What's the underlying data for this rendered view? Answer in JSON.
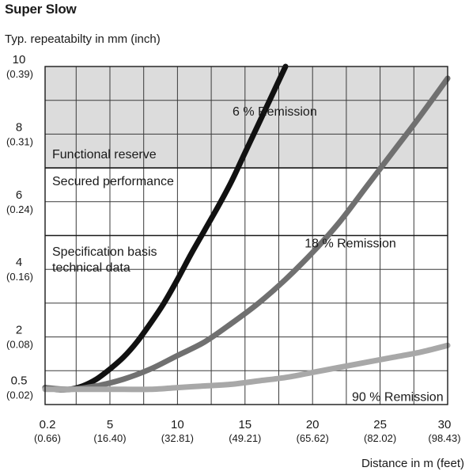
{
  "chart_data": {
    "type": "line",
    "title": "Super Slow",
    "ylabel": "Typ. repeatabilty in mm (inch)",
    "xlabel": "Distance in m (feet)",
    "xlim": [
      0.2,
      30
    ],
    "ylim": [
      0,
      10
    ],
    "grid": true,
    "x_ticks": [
      {
        "value": 0.2,
        "label": "0.2",
        "sub": "(0.66)"
      },
      {
        "value": 5,
        "label": "5",
        "sub": "(16.40)"
      },
      {
        "value": 10,
        "label": "10",
        "sub": "(32.81)"
      },
      {
        "value": 15,
        "label": "15",
        "sub": "(49.21)"
      },
      {
        "value": 20,
        "label": "20",
        "sub": "(65.62)"
      },
      {
        "value": 25,
        "label": "25",
        "sub": "(82.02)"
      },
      {
        "value": 30,
        "label": "30",
        "sub": "(98.43)"
      }
    ],
    "y_ticks": [
      {
        "value": 10,
        "label": "10",
        "sub": "(0.39)"
      },
      {
        "value": 8,
        "label": "8",
        "sub": "(0.31)"
      },
      {
        "value": 6,
        "label": "6",
        "sub": "(0.24)"
      },
      {
        "value": 4,
        "label": "4",
        "sub": "(0.16)"
      },
      {
        "value": 2,
        "label": "2",
        "sub": "(0.08)"
      },
      {
        "value": 0.5,
        "label": "0.5",
        "sub": "(0.02)"
      }
    ],
    "regions": [
      {
        "label": "Functional reserve",
        "from": 7,
        "to": 10,
        "color": "#dcdcdc"
      },
      {
        "label": "Secured performance",
        "from": 5,
        "to": 7,
        "color": "#ffffff"
      },
      {
        "label": "Specification basis technical data",
        "lines": [
          "Specification basis",
          "technical data"
        ],
        "from": 0,
        "to": 5,
        "color": "#ffffff"
      }
    ],
    "series": [
      {
        "name": "6 % Remission",
        "color": "#111111",
        "x": [
          0.2,
          1,
          2,
          3,
          4,
          5,
          6,
          7,
          8,
          9,
          10,
          11,
          12,
          13,
          14,
          15,
          16,
          17,
          18
        ],
        "y": [
          0.5,
          0.45,
          0.45,
          0.55,
          0.75,
          1.05,
          1.4,
          1.85,
          2.4,
          3.0,
          3.7,
          4.45,
          5.15,
          5.85,
          6.6,
          7.45,
          8.3,
          9.15,
          10.0
        ]
      },
      {
        "name": "18 % Remission",
        "color": "#707070",
        "x": [
          0.2,
          2,
          4,
          6,
          8,
          10,
          12,
          14,
          16,
          18,
          20,
          22,
          24,
          26,
          28,
          30
        ],
        "y": [
          0.5,
          0.45,
          0.55,
          0.75,
          1.05,
          1.45,
          1.85,
          2.4,
          3.0,
          3.7,
          4.5,
          5.4,
          6.45,
          7.5,
          8.55,
          9.65
        ]
      },
      {
        "name": "90 % Remission",
        "color": "#a8a8a8",
        "x": [
          0.2,
          2,
          4,
          6,
          8,
          10,
          12,
          14,
          16,
          18,
          20,
          22,
          24,
          26,
          28,
          30
        ],
        "y": [
          0.45,
          0.45,
          0.45,
          0.45,
          0.45,
          0.5,
          0.55,
          0.6,
          0.7,
          0.8,
          0.95,
          1.1,
          1.25,
          1.4,
          1.55,
          1.75
        ]
      }
    ],
    "curve_labels": [
      {
        "text": "6 % Remission",
        "x": 17.2,
        "y": 8.55
      },
      {
        "text": "18 % Remission",
        "x": 22.8,
        "y": 4.65
      },
      {
        "text": "90 % Remission",
        "x": 26.3,
        "y": 0.1
      }
    ]
  }
}
